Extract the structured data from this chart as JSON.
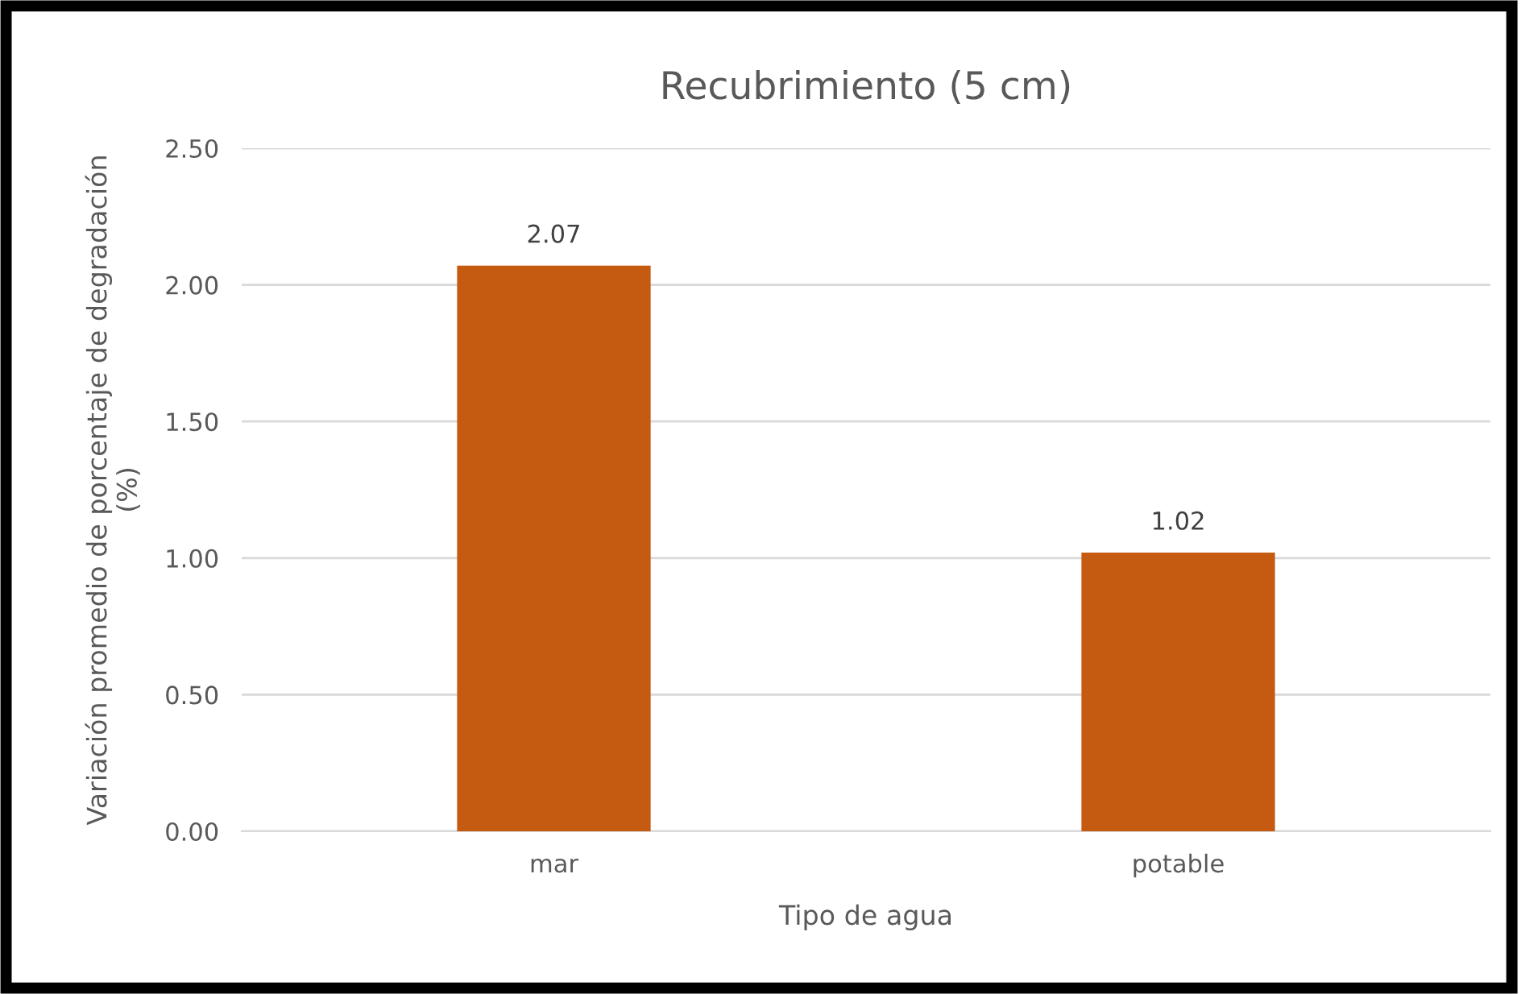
{
  "chart_data": {
    "type": "bar",
    "title": "Recubrimiento (5 cm)",
    "xlabel": "Tipo de agua",
    "ylabel": "Variación promedio de porcentaje de degradación\n(%)",
    "categories": [
      "mar",
      "potable"
    ],
    "values": [
      2.07,
      1.02
    ],
    "color": "#c55a11",
    "ylim": [
      0,
      2.5
    ],
    "yticks": [
      {
        "value": 0,
        "label": "0.00"
      },
      {
        "value": 0.5,
        "label": "0.50"
      },
      {
        "value": 1,
        "label": "1.00"
      },
      {
        "value": 1.5,
        "label": "1.50"
      },
      {
        "value": 2,
        "label": "2.00"
      },
      {
        "value": 2.5,
        "label": "2.50"
      }
    ],
    "grid": "y",
    "data_labels": true
  }
}
